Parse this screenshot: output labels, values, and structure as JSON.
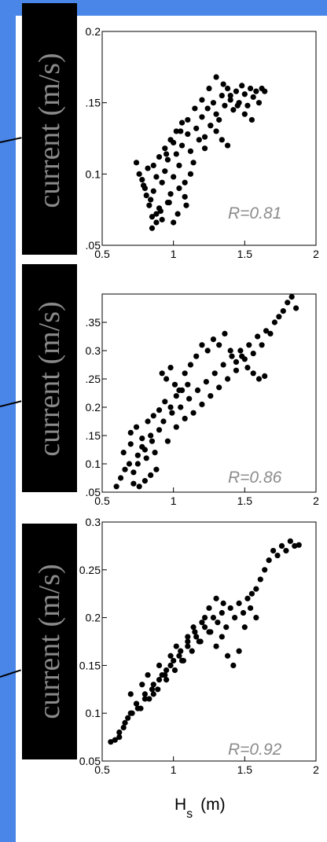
{
  "chart_data": [
    {
      "type": "scatter",
      "ylabel": "current (m/s)",
      "xlim": [
        0.5,
        2
      ],
      "ylim": [
        0.05,
        0.2
      ],
      "xticks": [
        "0.5",
        "1",
        "1.5",
        "2"
      ],
      "yticks": [
        ".05",
        "0.1",
        ".15",
        "0.2"
      ],
      "annotation": "R=0.81",
      "grid": false,
      "x": [
        0.74,
        0.76,
        0.79,
        0.81,
        0.83,
        0.85,
        0.78,
        0.8,
        0.82,
        0.84,
        0.86,
        0.88,
        0.9,
        0.92,
        0.94,
        0.96,
        0.98,
        1.0,
        1.02,
        1.04,
        1.06,
        1.08,
        1.1,
        1.12,
        1.14,
        1.16,
        1.18,
        1.2,
        1.22,
        1.24,
        1.26,
        1.28,
        1.3,
        1.32,
        1.34,
        1.36,
        1.38,
        1.4,
        1.42,
        1.44,
        1.46,
        1.48,
        1.5,
        1.52,
        1.54,
        1.56,
        1.58,
        1.6,
        1.62,
        1.64,
        0.88,
        0.92,
        0.96,
        1.0,
        1.04,
        1.08,
        1.12,
        0.86,
        0.9,
        0.94,
        0.98,
        1.02,
        1.06,
        0.95,
        1.0,
        1.05,
        1.1,
        1.15,
        1.2,
        1.25,
        1.3,
        1.35,
        1.4,
        1.45,
        1.5,
        1.55,
        1.22,
        1.26,
        1.3,
        1.34,
        1.38,
        0.85,
        0.88,
        0.91,
        0.97,
        1.03,
        1.09
      ],
      "y": [
        0.108,
        0.1,
        0.092,
        0.085,
        0.078,
        0.07,
        0.096,
        0.09,
        0.104,
        0.082,
        0.088,
        0.098,
        0.076,
        0.094,
        0.102,
        0.11,
        0.086,
        0.098,
        0.114,
        0.106,
        0.12,
        0.094,
        0.128,
        0.116,
        0.108,
        0.132,
        0.124,
        0.14,
        0.118,
        0.146,
        0.134,
        0.15,
        0.142,
        0.138,
        0.155,
        0.148,
        0.16,
        0.152,
        0.145,
        0.158,
        0.15,
        0.162,
        0.156,
        0.148,
        0.16,
        0.154,
        0.158,
        0.15,
        0.16,
        0.158,
        0.072,
        0.068,
        0.08,
        0.066,
        0.09,
        0.084,
        0.1,
        0.106,
        0.112,
        0.118,
        0.124,
        0.13,
        0.136,
        0.114,
        0.122,
        0.13,
        0.138,
        0.146,
        0.152,
        0.16,
        0.168,
        0.163,
        0.155,
        0.148,
        0.142,
        0.138,
        0.126,
        0.134,
        0.13,
        0.124,
        0.12,
        0.062,
        0.066,
        0.074,
        0.08,
        0.072,
        0.078
      ]
    },
    {
      "type": "scatter",
      "ylabel": "current (m/s)",
      "xlim": [
        0.5,
        2
      ],
      "ylim": [
        0.05,
        0.4
      ],
      "xticks": [
        "0.5",
        "1",
        "1.5",
        "2"
      ],
      "yticks": [
        ".05",
        "0.1",
        ".15",
        "0.2",
        ".25",
        "0.3",
        ".35"
      ],
      "annotation": "R=0.86",
      "grid": false,
      "x": [
        0.6,
        0.63,
        0.66,
        0.69,
        0.72,
        0.75,
        0.78,
        0.81,
        0.84,
        0.87,
        0.9,
        0.93,
        0.96,
        0.99,
        1.02,
        1.05,
        1.08,
        1.11,
        1.14,
        1.17,
        1.2,
        1.23,
        1.26,
        1.29,
        1.32,
        1.35,
        1.38,
        1.41,
        1.44,
        1.47,
        1.5,
        1.53,
        1.56,
        1.59,
        1.62,
        1.65,
        1.68,
        1.71,
        1.74,
        1.77,
        1.8,
        1.83,
        1.86,
        0.7,
        0.74,
        0.78,
        0.82,
        0.86,
        0.9,
        0.94,
        0.98,
        1.02,
        1.06,
        1.1,
        0.92,
        0.95,
        0.98,
        1.01,
        1.04,
        1.08,
        1.12,
        1.16,
        1.2,
        1.24,
        1.28,
        1.32,
        1.36,
        1.4,
        1.44,
        1.48,
        1.52,
        1.56,
        1.6,
        1.64,
        0.72,
        0.76,
        0.8,
        0.84,
        0.88,
        0.65,
        0.7,
        0.75,
        0.8,
        0.85
      ],
      "y": [
        0.06,
        0.075,
        0.09,
        0.1,
        0.085,
        0.115,
        0.13,
        0.11,
        0.15,
        0.12,
        0.16,
        0.175,
        0.14,
        0.19,
        0.165,
        0.2,
        0.18,
        0.215,
        0.19,
        0.23,
        0.205,
        0.245,
        0.22,
        0.26,
        0.235,
        0.275,
        0.25,
        0.29,
        0.265,
        0.3,
        0.285,
        0.31,
        0.295,
        0.325,
        0.31,
        0.335,
        0.33,
        0.35,
        0.36,
        0.37,
        0.385,
        0.395,
        0.375,
        0.155,
        0.165,
        0.145,
        0.175,
        0.185,
        0.195,
        0.21,
        0.2,
        0.22,
        0.23,
        0.24,
        0.26,
        0.25,
        0.27,
        0.24,
        0.23,
        0.26,
        0.275,
        0.29,
        0.31,
        0.3,
        0.32,
        0.31,
        0.33,
        0.3,
        0.28,
        0.29,
        0.27,
        0.26,
        0.25,
        0.255,
        0.065,
        0.06,
        0.07,
        0.08,
        0.09,
        0.12,
        0.135,
        0.1,
        0.125,
        0.14
      ]
    },
    {
      "type": "scatter",
      "ylabel": "current (m/s)",
      "xlabel": "Hs (m)",
      "xlabel_main": "H",
      "xlabel_sub": "s",
      "xlabel_unit": "(m)",
      "xlim": [
        0.5,
        2
      ],
      "ylim": [
        0.05,
        0.3
      ],
      "xticks": [
        "0.5",
        "1",
        "1.5",
        "2"
      ],
      "yticks": [
        "0.05",
        "0.1",
        "0.15",
        "0.2",
        "0.25",
        "0.3"
      ],
      "annotation": "R=0.92",
      "grid": false,
      "x": [
        0.56,
        0.59,
        0.62,
        0.65,
        0.68,
        0.71,
        0.74,
        0.77,
        0.8,
        0.83,
        0.86,
        0.89,
        0.92,
        0.95,
        0.98,
        1.01,
        1.04,
        1.07,
        1.1,
        1.13,
        1.16,
        1.19,
        1.22,
        1.25,
        1.28,
        1.31,
        1.34,
        1.37,
        1.4,
        1.43,
        1.46,
        1.49,
        1.52,
        1.55,
        1.58,
        1.61,
        1.64,
        1.67,
        1.7,
        1.73,
        1.76,
        1.79,
        1.82,
        1.85,
        1.88,
        0.7,
        0.74,
        0.78,
        0.82,
        0.86,
        0.9,
        0.94,
        0.98,
        1.02,
        1.06,
        1.1,
        1.14,
        1.18,
        1.22,
        1.26,
        1.3,
        1.34,
        1.38,
        1.42,
        1.46,
        1.5,
        1.54,
        1.58,
        0.62,
        0.66,
        0.7,
        0.75,
        0.8,
        0.85,
        0.9,
        0.95,
        1.0,
        1.05,
        1.1,
        1.15,
        1.2,
        1.25,
        1.3,
        1.35
      ],
      "y": [
        0.07,
        0.072,
        0.08,
        0.085,
        0.095,
        0.1,
        0.11,
        0.105,
        0.12,
        0.115,
        0.13,
        0.125,
        0.14,
        0.135,
        0.15,
        0.145,
        0.16,
        0.155,
        0.17,
        0.165,
        0.18,
        0.175,
        0.19,
        0.185,
        0.2,
        0.195,
        0.205,
        0.19,
        0.21,
        0.2,
        0.215,
        0.205,
        0.22,
        0.225,
        0.23,
        0.24,
        0.25,
        0.26,
        0.27,
        0.265,
        0.275,
        0.27,
        0.28,
        0.275,
        0.276,
        0.12,
        0.11,
        0.13,
        0.14,
        0.12,
        0.15,
        0.14,
        0.16,
        0.17,
        0.155,
        0.18,
        0.19,
        0.175,
        0.2,
        0.185,
        0.17,
        0.18,
        0.16,
        0.15,
        0.165,
        0.19,
        0.21,
        0.2,
        0.075,
        0.09,
        0.1,
        0.105,
        0.115,
        0.125,
        0.135,
        0.145,
        0.155,
        0.165,
        0.175,
        0.185,
        0.195,
        0.21,
        0.22,
        0.215
      ]
    }
  ]
}
